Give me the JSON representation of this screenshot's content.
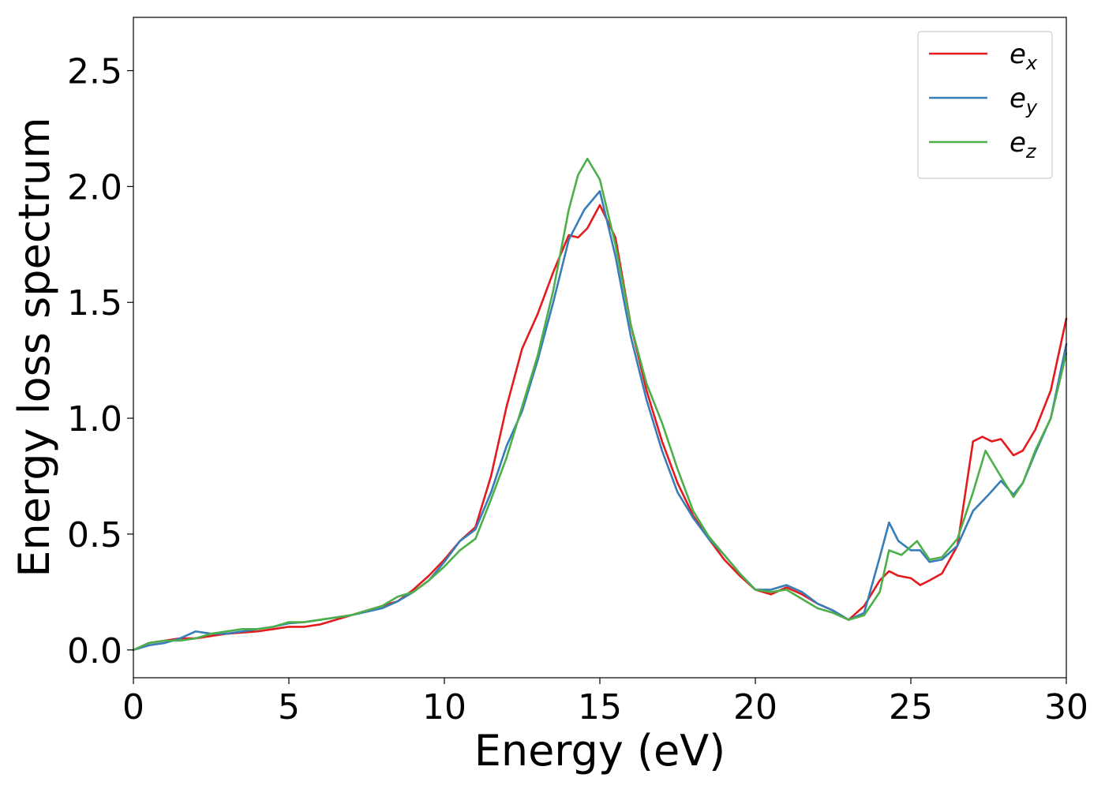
{
  "chart_data": {
    "type": "line",
    "title": "",
    "xlabel": "Energy (eV)",
    "ylabel": "Energy loss spectrum",
    "xlim": [
      0,
      30
    ],
    "ylim": [
      -0.12,
      2.73
    ],
    "grid": false,
    "legend_position": "top-right",
    "xticks": [
      0,
      5,
      10,
      15,
      20,
      25,
      30
    ],
    "xtick_labels": [
      "0",
      "5",
      "10",
      "15",
      "20",
      "25",
      "30"
    ],
    "yticks": [
      0.0,
      0.5,
      1.0,
      1.5,
      2.0,
      2.5
    ],
    "ytick_labels": [
      "0.0",
      "0.5",
      "1.0",
      "1.5",
      "2.0",
      "2.5"
    ],
    "series": [
      {
        "name": "e_x",
        "legend_base": "e",
        "legend_sub": "x",
        "color": "#e41a1c",
        "x": [
          0,
          0.5,
          1,
          1.5,
          2,
          2.5,
          3,
          3.5,
          4,
          4.5,
          5,
          5.5,
          6,
          6.5,
          7,
          7.5,
          8,
          8.5,
          9,
          9.5,
          10,
          10.5,
          11,
          11.5,
          12,
          12.5,
          13,
          13.5,
          14,
          14.3,
          14.6,
          15,
          15.5,
          16,
          16.5,
          17,
          17.5,
          18,
          18.5,
          19,
          19.5,
          20,
          20.5,
          21,
          21.5,
          22,
          22.5,
          23,
          23.5,
          24,
          24.3,
          24.6,
          25,
          25.3,
          25.6,
          26,
          26.5,
          27,
          27.3,
          27.6,
          27.9,
          28.3,
          28.6,
          29,
          29.5,
          30
        ],
        "y": [
          0,
          0.03,
          0.04,
          0.05,
          0.05,
          0.06,
          0.07,
          0.075,
          0.08,
          0.09,
          0.1,
          0.1,
          0.11,
          0.13,
          0.15,
          0.17,
          0.19,
          0.21,
          0.26,
          0.32,
          0.39,
          0.47,
          0.53,
          0.75,
          1.05,
          1.3,
          1.45,
          1.63,
          1.79,
          1.78,
          1.82,
          1.92,
          1.78,
          1.4,
          1.12,
          0.9,
          0.72,
          0.58,
          0.48,
          0.39,
          0.32,
          0.26,
          0.24,
          0.27,
          0.24,
          0.2,
          0.17,
          0.13,
          0.19,
          0.3,
          0.34,
          0.32,
          0.31,
          0.28,
          0.3,
          0.33,
          0.45,
          0.9,
          0.92,
          0.9,
          0.91,
          0.84,
          0.86,
          0.95,
          1.12,
          1.43
        ]
      },
      {
        "name": "e_y",
        "legend_base": "e",
        "legend_sub": "y",
        "color": "#377eb8",
        "x": [
          0,
          0.5,
          1,
          1.5,
          2,
          2.5,
          3,
          3.5,
          4,
          4.5,
          5,
          5.5,
          6,
          6.5,
          7,
          7.5,
          8,
          8.5,
          9,
          9.5,
          10,
          10.5,
          11,
          11.5,
          12,
          12.5,
          13,
          13.5,
          14,
          14.5,
          15,
          15.5,
          16,
          16.5,
          17,
          17.5,
          18,
          18.5,
          19,
          19.5,
          20,
          20.5,
          21,
          21.5,
          22,
          22.5,
          23,
          23.5,
          24,
          24.3,
          24.6,
          25,
          25.3,
          25.6,
          26,
          26.5,
          27,
          27.5,
          27.9,
          28.3,
          28.6,
          29,
          29.5,
          30
        ],
        "y": [
          0,
          0.02,
          0.03,
          0.05,
          0.08,
          0.07,
          0.07,
          0.08,
          0.09,
          0.1,
          0.115,
          0.12,
          0.13,
          0.14,
          0.15,
          0.165,
          0.18,
          0.21,
          0.25,
          0.3,
          0.38,
          0.47,
          0.52,
          0.68,
          0.88,
          1.03,
          1.25,
          1.5,
          1.77,
          1.9,
          1.98,
          1.7,
          1.35,
          1.08,
          0.86,
          0.68,
          0.57,
          0.48,
          0.41,
          0.33,
          0.26,
          0.26,
          0.28,
          0.25,
          0.2,
          0.17,
          0.13,
          0.16,
          0.4,
          0.55,
          0.47,
          0.43,
          0.43,
          0.38,
          0.39,
          0.45,
          0.6,
          0.67,
          0.73,
          0.67,
          0.72,
          0.85,
          1.0,
          1.32
        ]
      },
      {
        "name": "e_z",
        "legend_base": "e",
        "legend_sub": "z",
        "color": "#4daf4a",
        "x": [
          0,
          0.5,
          1,
          1.5,
          2,
          2.5,
          3,
          3.5,
          4,
          4.5,
          5,
          5.5,
          6,
          6.5,
          7,
          7.5,
          8,
          8.5,
          9,
          9.5,
          10,
          10.5,
          11,
          11.5,
          12,
          12.5,
          13,
          13.5,
          14,
          14.3,
          14.6,
          15,
          15.5,
          16,
          16.5,
          17,
          17.5,
          18,
          18.5,
          19,
          19.5,
          20,
          20.5,
          21,
          21.5,
          22,
          22.5,
          23,
          23.5,
          24,
          24.3,
          24.7,
          25.2,
          25.6,
          26,
          26.5,
          27,
          27.4,
          27.8,
          28.3,
          28.6,
          29,
          29.5,
          30
        ],
        "y": [
          0,
          0.03,
          0.04,
          0.04,
          0.05,
          0.07,
          0.08,
          0.09,
          0.09,
          0.1,
          0.12,
          0.12,
          0.13,
          0.14,
          0.15,
          0.17,
          0.19,
          0.23,
          0.25,
          0.3,
          0.36,
          0.43,
          0.48,
          0.65,
          0.83,
          1.05,
          1.27,
          1.55,
          1.9,
          2.05,
          2.12,
          2.03,
          1.75,
          1.4,
          1.15,
          0.98,
          0.78,
          0.6,
          0.49,
          0.41,
          0.33,
          0.26,
          0.25,
          0.26,
          0.22,
          0.18,
          0.16,
          0.13,
          0.15,
          0.25,
          0.43,
          0.41,
          0.47,
          0.39,
          0.4,
          0.48,
          0.68,
          0.86,
          0.77,
          0.66,
          0.72,
          0.86,
          1.0,
          1.28
        ]
      }
    ]
  }
}
